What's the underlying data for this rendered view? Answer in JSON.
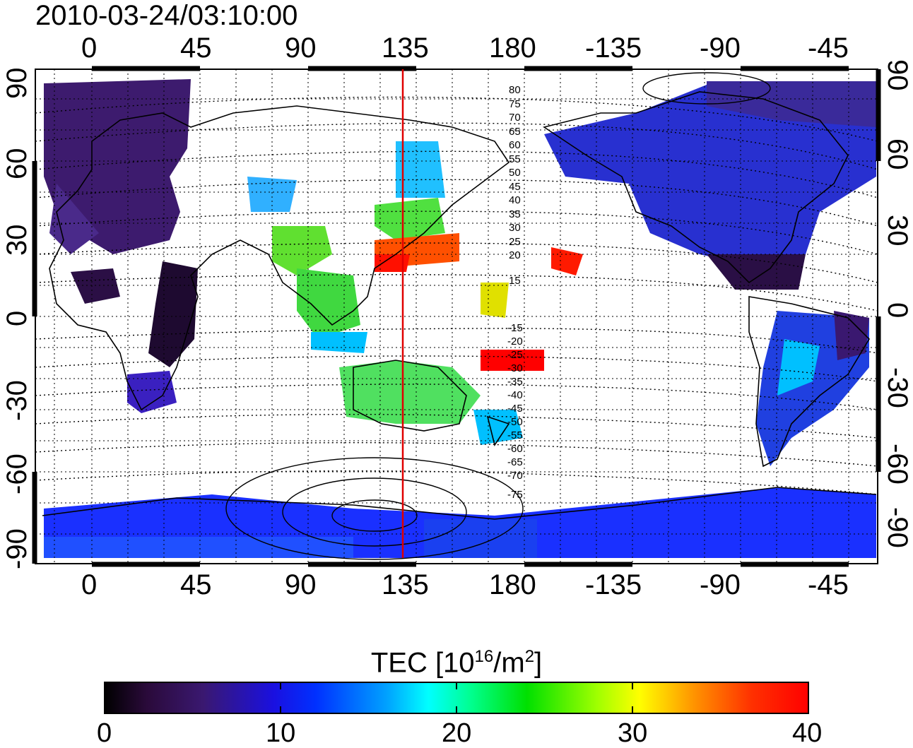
{
  "title": "2010-03-24/03:10:00",
  "x_ticks": [
    "0",
    "45",
    "90",
    "135",
    "180",
    "-135",
    "-90",
    "-45"
  ],
  "y_ticks": [
    "90",
    "60",
    "30",
    "0",
    "-30",
    "-60",
    "-90"
  ],
  "contour_labels_north": [
    "80",
    "75",
    "70",
    "65",
    "60",
    "55",
    "50",
    "45",
    "40",
    "35",
    "30",
    "25",
    "20",
    "15"
  ],
  "contour_labels_south": [
    "-15",
    "-20",
    "-25",
    "-30",
    "-35",
    "-40",
    "-45",
    "-50",
    "-55",
    "-60",
    "-65",
    "-70",
    "-75"
  ],
  "colorbar": {
    "label": "TEC  [10",
    "label_sup1": "16",
    "label_mid": "/m",
    "label_sup2": "2",
    "label_end": "]",
    "ticks": [
      "0",
      "10",
      "20",
      "30",
      "40"
    ],
    "range": [
      0,
      40
    ]
  },
  "marker_longitude": 135,
  "colors": {
    "marker": "#e00000",
    "grid": "#000000",
    "contour": "#000000"
  }
}
